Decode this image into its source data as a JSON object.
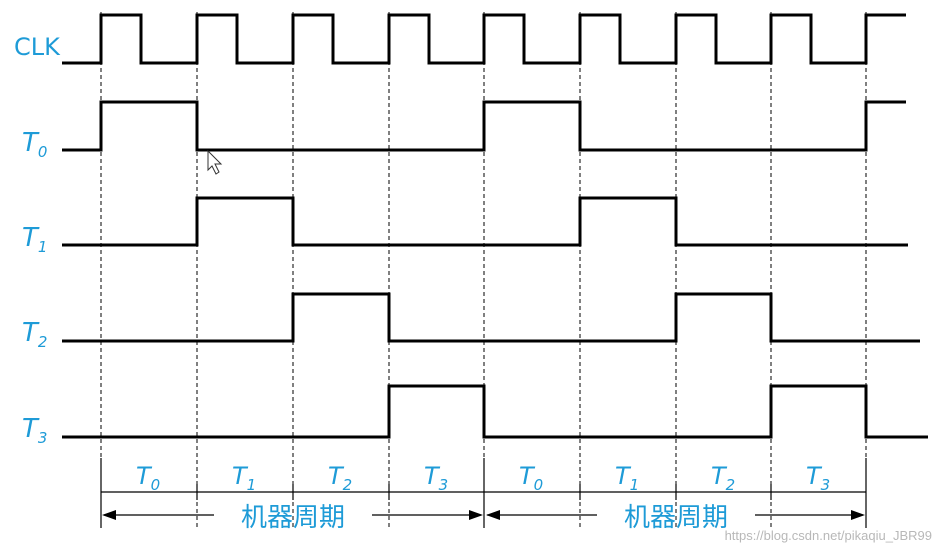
{
  "signals": [
    {
      "id": "clk",
      "main": "CLK",
      "sub": ""
    },
    {
      "id": "t0",
      "main": "T",
      "sub": "0"
    },
    {
      "id": "t1",
      "main": "T",
      "sub": "1"
    },
    {
      "id": "t2",
      "main": "T",
      "sub": "2"
    },
    {
      "id": "t3",
      "main": "T",
      "sub": "3"
    }
  ],
  "phases": [
    {
      "main": "T",
      "sub": "0"
    },
    {
      "main": "T",
      "sub": "1"
    },
    {
      "main": "T",
      "sub": "2"
    },
    {
      "main": "T",
      "sub": "3"
    },
    {
      "main": "T",
      "sub": "0"
    },
    {
      "main": "T",
      "sub": "1"
    },
    {
      "main": "T",
      "sub": "2"
    },
    {
      "main": "T",
      "sub": "3"
    }
  ],
  "cycle_label_1": "机器周期",
  "cycle_label_2": "机器周期",
  "watermark": "https://blog.csdn.net/pikaqiu_JBR99",
  "colors": {
    "label": "#1e9bd7",
    "wave": "#000000"
  }
}
